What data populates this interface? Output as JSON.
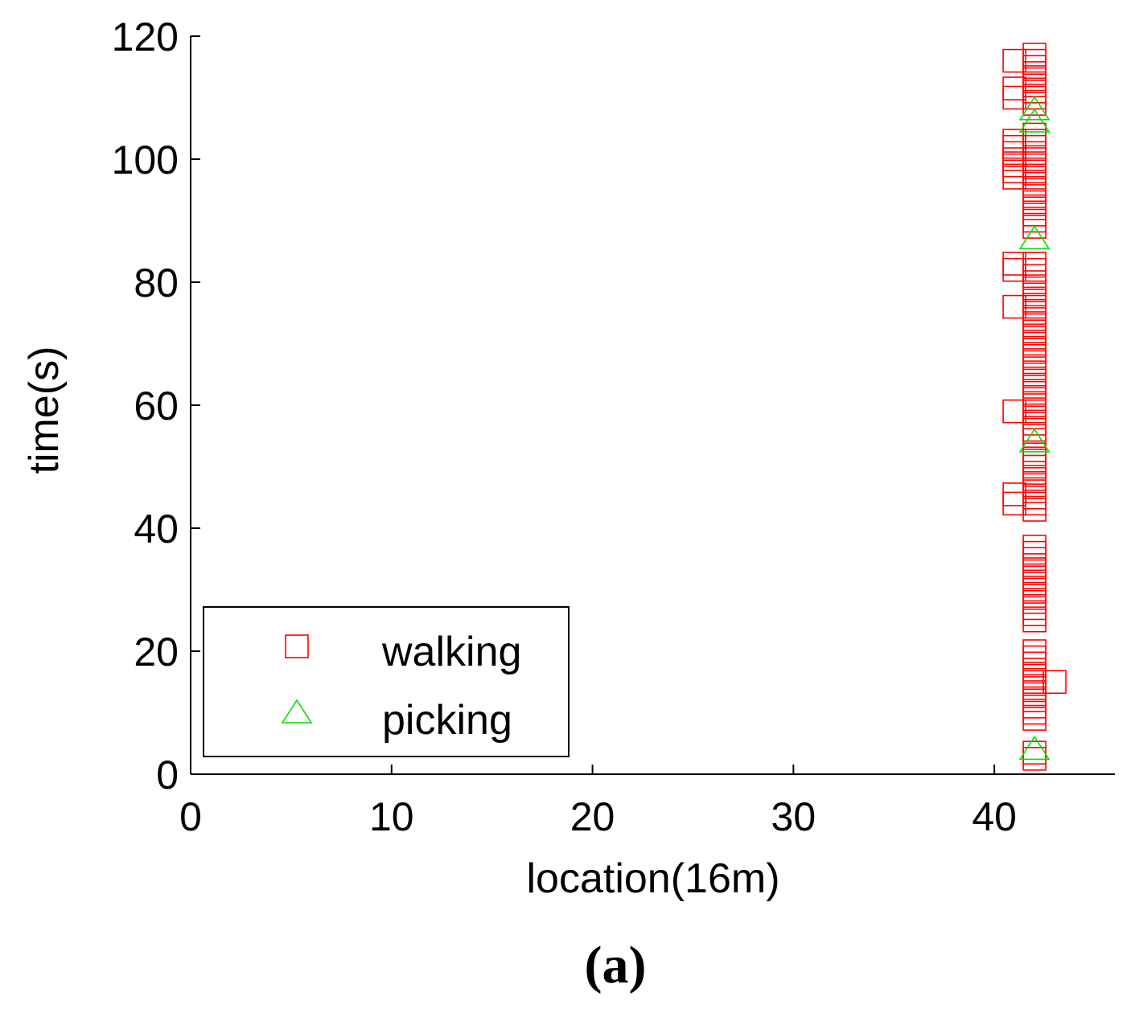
{
  "chart_data": {
    "type": "scatter",
    "title": "",
    "xlabel": "location(16m)",
    "ylabel": "time(s)",
    "xlim": [
      0,
      46
    ],
    "ylim": [
      0,
      120
    ],
    "x_ticks": [
      0,
      10,
      20,
      30,
      40
    ],
    "y_ticks": [
      0,
      20,
      40,
      60,
      80,
      100,
      120
    ],
    "grid": false,
    "legend_position": "bottom-left",
    "series": [
      {
        "name": "walking",
        "marker": "square",
        "color": "#ff0000",
        "points": [
          {
            "x": 42,
            "y": 2.5
          },
          {
            "x": 42,
            "y": 3.5
          },
          {
            "x": 42,
            "y": 9
          },
          {
            "x": 42,
            "y": 10
          },
          {
            "x": 42,
            "y": 11
          },
          {
            "x": 42,
            "y": 12
          },
          {
            "x": 42,
            "y": 13
          },
          {
            "x": 42,
            "y": 14
          },
          {
            "x": 42,
            "y": 15
          },
          {
            "x": 42,
            "y": 16
          },
          {
            "x": 42,
            "y": 17
          },
          {
            "x": 42,
            "y": 18
          },
          {
            "x": 42,
            "y": 19
          },
          {
            "x": 42,
            "y": 20
          },
          {
            "x": 43,
            "y": 15
          },
          {
            "x": 42,
            "y": 25
          },
          {
            "x": 42,
            "y": 26
          },
          {
            "x": 42,
            "y": 27
          },
          {
            "x": 42,
            "y": 28
          },
          {
            "x": 42,
            "y": 29
          },
          {
            "x": 42,
            "y": 30
          },
          {
            "x": 42,
            "y": 31
          },
          {
            "x": 42,
            "y": 32
          },
          {
            "x": 42,
            "y": 33
          },
          {
            "x": 42,
            "y": 34
          },
          {
            "x": 42,
            "y": 35
          },
          {
            "x": 42,
            "y": 36
          },
          {
            "x": 42,
            "y": 37
          },
          {
            "x": 41,
            "y": 44
          },
          {
            "x": 41,
            "y": 45.5
          },
          {
            "x": 42,
            "y": 43
          },
          {
            "x": 42,
            "y": 44
          },
          {
            "x": 42,
            "y": 45
          },
          {
            "x": 42,
            "y": 46
          },
          {
            "x": 42,
            "y": 47
          },
          {
            "x": 42,
            "y": 48
          },
          {
            "x": 42,
            "y": 49
          },
          {
            "x": 42,
            "y": 50
          },
          {
            "x": 42,
            "y": 51
          },
          {
            "x": 42,
            "y": 52
          },
          {
            "x": 42,
            "y": 55
          },
          {
            "x": 42,
            "y": 56
          },
          {
            "x": 42,
            "y": 57
          },
          {
            "x": 42,
            "y": 58
          },
          {
            "x": 42,
            "y": 59
          },
          {
            "x": 42,
            "y": 60
          },
          {
            "x": 42,
            "y": 61
          },
          {
            "x": 42,
            "y": 62
          },
          {
            "x": 42,
            "y": 63
          },
          {
            "x": 42,
            "y": 64
          },
          {
            "x": 42,
            "y": 65
          },
          {
            "x": 42,
            "y": 66
          },
          {
            "x": 42,
            "y": 67
          },
          {
            "x": 42,
            "y": 68
          },
          {
            "x": 42,
            "y": 69
          },
          {
            "x": 42,
            "y": 70
          },
          {
            "x": 42,
            "y": 71
          },
          {
            "x": 42,
            "y": 72
          },
          {
            "x": 42,
            "y": 73
          },
          {
            "x": 42,
            "y": 74
          },
          {
            "x": 42,
            "y": 75
          },
          {
            "x": 42,
            "y": 76
          },
          {
            "x": 42,
            "y": 77
          },
          {
            "x": 42,
            "y": 78
          },
          {
            "x": 42,
            "y": 79
          },
          {
            "x": 42,
            "y": 80
          },
          {
            "x": 42,
            "y": 81
          },
          {
            "x": 42,
            "y": 82
          },
          {
            "x": 42,
            "y": 83
          },
          {
            "x": 41,
            "y": 59
          },
          {
            "x": 41,
            "y": 76
          },
          {
            "x": 41,
            "y": 82
          },
          {
            "x": 41,
            "y": 83
          },
          {
            "x": 42,
            "y": 89
          },
          {
            "x": 42,
            "y": 90
          },
          {
            "x": 42,
            "y": 91
          },
          {
            "x": 42,
            "y": 92
          },
          {
            "x": 42,
            "y": 93
          },
          {
            "x": 42,
            "y": 94
          },
          {
            "x": 42,
            "y": 95
          },
          {
            "x": 42,
            "y": 96
          },
          {
            "x": 42,
            "y": 97
          },
          {
            "x": 42,
            "y": 98
          },
          {
            "x": 42,
            "y": 99
          },
          {
            "x": 42,
            "y": 100
          },
          {
            "x": 42,
            "y": 101
          },
          {
            "x": 42,
            "y": 102
          },
          {
            "x": 42,
            "y": 103
          },
          {
            "x": 42,
            "y": 104
          },
          {
            "x": 41,
            "y": 97
          },
          {
            "x": 41,
            "y": 98
          },
          {
            "x": 41,
            "y": 99
          },
          {
            "x": 41,
            "y": 100
          },
          {
            "x": 41,
            "y": 101
          },
          {
            "x": 41,
            "y": 102
          },
          {
            "x": 41,
            "y": 103
          },
          {
            "x": 42,
            "y": 109
          },
          {
            "x": 42,
            "y": 110
          },
          {
            "x": 42,
            "y": 111
          },
          {
            "x": 42,
            "y": 112
          },
          {
            "x": 42,
            "y": 113
          },
          {
            "x": 42,
            "y": 114
          },
          {
            "x": 42,
            "y": 115
          },
          {
            "x": 42,
            "y": 116
          },
          {
            "x": 42,
            "y": 117
          },
          {
            "x": 41,
            "y": 110
          },
          {
            "x": 41,
            "y": 111.5
          },
          {
            "x": 41,
            "y": 116
          }
        ]
      },
      {
        "name": "picking",
        "marker": "triangle",
        "color": "#00e000",
        "points": [
          {
            "x": 42,
            "y": 4
          },
          {
            "x": 42,
            "y": 54
          },
          {
            "x": 42,
            "y": 87
          },
          {
            "x": 42,
            "y": 106
          },
          {
            "x": 42,
            "y": 108
          }
        ]
      }
    ],
    "caption": "(a)"
  }
}
